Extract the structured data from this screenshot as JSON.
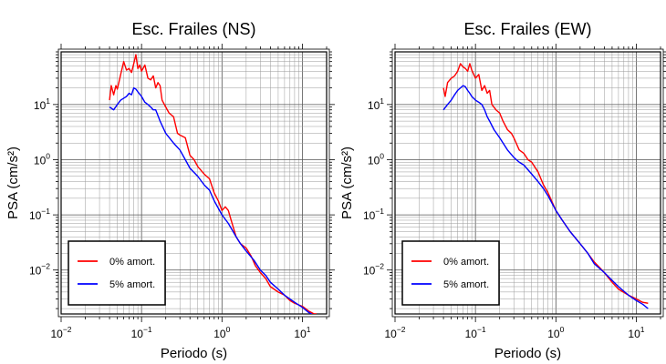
{
  "chart_data": [
    {
      "type": "line",
      "title": "Esc. Frailes (NS)",
      "xlabel": "Periodo (s)",
      "ylabel": "PSA (cm/s²)",
      "xscale": "log",
      "yscale": "log",
      "xlim": [
        0.01,
        20
      ],
      "ylim": [
        0.0016,
        90
      ],
      "grid": true,
      "legend_position": "bottom-left",
      "xticks": [
        {
          "base": "10",
          "exp": "−2",
          "value": 0.01
        },
        {
          "base": "10",
          "exp": "−1",
          "value": 0.1
        },
        {
          "base": "10",
          "exp": "0",
          "value": 1
        },
        {
          "base": "10",
          "exp": "1",
          "value": 10
        }
      ],
      "yticks": [
        {
          "base": "10",
          "exp": "−2",
          "value": 0.01
        },
        {
          "base": "10",
          "exp": "−1",
          "value": 0.1
        },
        {
          "base": "10",
          "exp": "0",
          "value": 1
        },
        {
          "base": "10",
          "exp": "1",
          "value": 10
        }
      ],
      "series": [
        {
          "name": "0% amort.",
          "color": "#ff0000",
          "points": [
            [
              0.04,
              12
            ],
            [
              0.042,
              22
            ],
            [
              0.045,
              15
            ],
            [
              0.048,
              22
            ],
            [
              0.05,
              19
            ],
            [
              0.055,
              35
            ],
            [
              0.06,
              60
            ],
            [
              0.065,
              42
            ],
            [
              0.07,
              45
            ],
            [
              0.075,
              38
            ],
            [
              0.08,
              55
            ],
            [
              0.085,
              80
            ],
            [
              0.09,
              45
            ],
            [
              0.095,
              52
            ],
            [
              0.1,
              40
            ],
            [
              0.11,
              52
            ],
            [
              0.12,
              30
            ],
            [
              0.13,
              28
            ],
            [
              0.14,
              33
            ],
            [
              0.15,
              20
            ],
            [
              0.16,
              25
            ],
            [
              0.17,
              22
            ],
            [
              0.18,
              12
            ],
            [
              0.2,
              9
            ],
            [
              0.22,
              7
            ],
            [
              0.25,
              6
            ],
            [
              0.28,
              3
            ],
            [
              0.3,
              2.8
            ],
            [
              0.35,
              2.5
            ],
            [
              0.4,
              1.2
            ],
            [
              0.45,
              1.0
            ],
            [
              0.5,
              0.75
            ],
            [
              0.6,
              0.55
            ],
            [
              0.7,
              0.45
            ],
            [
              0.8,
              0.25
            ],
            [
              0.9,
              0.18
            ],
            [
              1.0,
              0.12
            ],
            [
              1.1,
              0.14
            ],
            [
              1.2,
              0.12
            ],
            [
              1.3,
              0.08
            ],
            [
              1.5,
              0.04
            ],
            [
              1.7,
              0.03
            ],
            [
              2.0,
              0.025
            ],
            [
              2.3,
              0.018
            ],
            [
              2.6,
              0.012
            ],
            [
              3.0,
              0.009
            ],
            [
              3.5,
              0.007
            ],
            [
              4.0,
              0.005
            ],
            [
              5.0,
              0.004
            ],
            [
              6.0,
              0.0035
            ],
            [
              7.0,
              0.0028
            ],
            [
              8.0,
              0.0025
            ],
            [
              10,
              0.0022
            ],
            [
              12,
              0.0018
            ],
            [
              14,
              0.0016
            ],
            [
              15,
              0.0016
            ]
          ]
        },
        {
          "name": "5% amort.",
          "color": "#0000ff",
          "points": [
            [
              0.04,
              9
            ],
            [
              0.045,
              8
            ],
            [
              0.05,
              10
            ],
            [
              0.055,
              12
            ],
            [
              0.06,
              13
            ],
            [
              0.065,
              14
            ],
            [
              0.07,
              16
            ],
            [
              0.075,
              15
            ],
            [
              0.08,
              20
            ],
            [
              0.085,
              19
            ],
            [
              0.09,
              17
            ],
            [
              0.1,
              14
            ],
            [
              0.11,
              11
            ],
            [
              0.12,
              10
            ],
            [
              0.13,
              9
            ],
            [
              0.14,
              8
            ],
            [
              0.15,
              8
            ],
            [
              0.17,
              5
            ],
            [
              0.2,
              3
            ],
            [
              0.25,
              2
            ],
            [
              0.3,
              1.5
            ],
            [
              0.35,
              1.0
            ],
            [
              0.4,
              0.7
            ],
            [
              0.5,
              0.5
            ],
            [
              0.6,
              0.35
            ],
            [
              0.7,
              0.28
            ],
            [
              0.8,
              0.18
            ],
            [
              1.0,
              0.1
            ],
            [
              1.2,
              0.07
            ],
            [
              1.5,
              0.04
            ],
            [
              1.7,
              0.03
            ],
            [
              2.0,
              0.022
            ],
            [
              2.5,
              0.015
            ],
            [
              3.0,
              0.01
            ],
            [
              3.5,
              0.008
            ],
            [
              4.0,
              0.006
            ],
            [
              5.0,
              0.0045
            ],
            [
              6.0,
              0.0035
            ],
            [
              8.0,
              0.0026
            ],
            [
              10,
              0.0021
            ],
            [
              12,
              0.0017
            ],
            [
              14,
              0.0015
            ]
          ]
        }
      ]
    },
    {
      "type": "line",
      "title": "Esc. Frailes (EW)",
      "xlabel": "Periodo (s)",
      "ylabel": "PSA (cm/s²)",
      "xscale": "log",
      "yscale": "log",
      "xlim": [
        0.01,
        20
      ],
      "ylim": [
        0.0016,
        90
      ],
      "grid": true,
      "legend_position": "bottom-left",
      "xticks": [
        {
          "base": "10",
          "exp": "−2",
          "value": 0.01
        },
        {
          "base": "10",
          "exp": "−1",
          "value": 0.1
        },
        {
          "base": "10",
          "exp": "0",
          "value": 1
        },
        {
          "base": "10",
          "exp": "1",
          "value": 10
        }
      ],
      "yticks": [
        {
          "base": "10",
          "exp": "−2",
          "value": 0.01
        },
        {
          "base": "10",
          "exp": "−1",
          "value": 0.1
        },
        {
          "base": "10",
          "exp": "0",
          "value": 1
        },
        {
          "base": "10",
          "exp": "1",
          "value": 10
        }
      ],
      "series": [
        {
          "name": "0% amort.",
          "color": "#ff0000",
          "points": [
            [
              0.04,
              20
            ],
            [
              0.042,
              14
            ],
            [
              0.045,
              25
            ],
            [
              0.05,
              30
            ],
            [
              0.055,
              33
            ],
            [
              0.06,
              40
            ],
            [
              0.065,
              55
            ],
            [
              0.07,
              48
            ],
            [
              0.075,
              45
            ],
            [
              0.08,
              40
            ],
            [
              0.085,
              55
            ],
            [
              0.09,
              42
            ],
            [
              0.1,
              30
            ],
            [
              0.11,
              35
            ],
            [
              0.12,
              18
            ],
            [
              0.13,
              22
            ],
            [
              0.14,
              16
            ],
            [
              0.15,
              18
            ],
            [
              0.16,
              10
            ],
            [
              0.18,
              8
            ],
            [
              0.2,
              7
            ],
            [
              0.22,
              5
            ],
            [
              0.25,
              3.5
            ],
            [
              0.28,
              3
            ],
            [
              0.3,
              2.5
            ],
            [
              0.35,
              1.5
            ],
            [
              0.4,
              1.3
            ],
            [
              0.45,
              1.0
            ],
            [
              0.5,
              0.9
            ],
            [
              0.6,
              0.6
            ],
            [
              0.7,
              0.35
            ],
            [
              0.8,
              0.25
            ],
            [
              0.9,
              0.17
            ],
            [
              1.0,
              0.12
            ],
            [
              1.2,
              0.08
            ],
            [
              1.5,
              0.05
            ],
            [
              2.0,
              0.03
            ],
            [
              2.5,
              0.02
            ],
            [
              3.0,
              0.014
            ],
            [
              4.0,
              0.009
            ],
            [
              5.0,
              0.006
            ],
            [
              6.0,
              0.0045
            ],
            [
              8.0,
              0.0035
            ],
            [
              10,
              0.003
            ],
            [
              12,
              0.0026
            ],
            [
              14,
              0.0025
            ]
          ]
        },
        {
          "name": "5% amort.",
          "color": "#0000ff",
          "points": [
            [
              0.04,
              8
            ],
            [
              0.045,
              10
            ],
            [
              0.05,
              12
            ],
            [
              0.055,
              15
            ],
            [
              0.06,
              18
            ],
            [
              0.065,
              20
            ],
            [
              0.07,
              22
            ],
            [
              0.075,
              21
            ],
            [
              0.08,
              18
            ],
            [
              0.085,
              16
            ],
            [
              0.09,
              14
            ],
            [
              0.1,
              12
            ],
            [
              0.11,
              11
            ],
            [
              0.12,
              10
            ],
            [
              0.13,
              8
            ],
            [
              0.14,
              6
            ],
            [
              0.15,
              5
            ],
            [
              0.17,
              3.5
            ],
            [
              0.2,
              2.5
            ],
            [
              0.25,
              1.5
            ],
            [
              0.3,
              1.1
            ],
            [
              0.35,
              0.9
            ],
            [
              0.4,
              0.8
            ],
            [
              0.5,
              0.55
            ],
            [
              0.6,
              0.4
            ],
            [
              0.7,
              0.3
            ],
            [
              0.8,
              0.22
            ],
            [
              1.0,
              0.12
            ],
            [
              1.2,
              0.08
            ],
            [
              1.5,
              0.05
            ],
            [
              2.0,
              0.03
            ],
            [
              2.5,
              0.02
            ],
            [
              3.0,
              0.013
            ],
            [
              4.0,
              0.009
            ],
            [
              5.0,
              0.0065
            ],
            [
              6.0,
              0.005
            ],
            [
              8.0,
              0.0035
            ],
            [
              10,
              0.0028
            ],
            [
              12,
              0.0024
            ],
            [
              14,
              0.002
            ]
          ]
        }
      ]
    }
  ]
}
